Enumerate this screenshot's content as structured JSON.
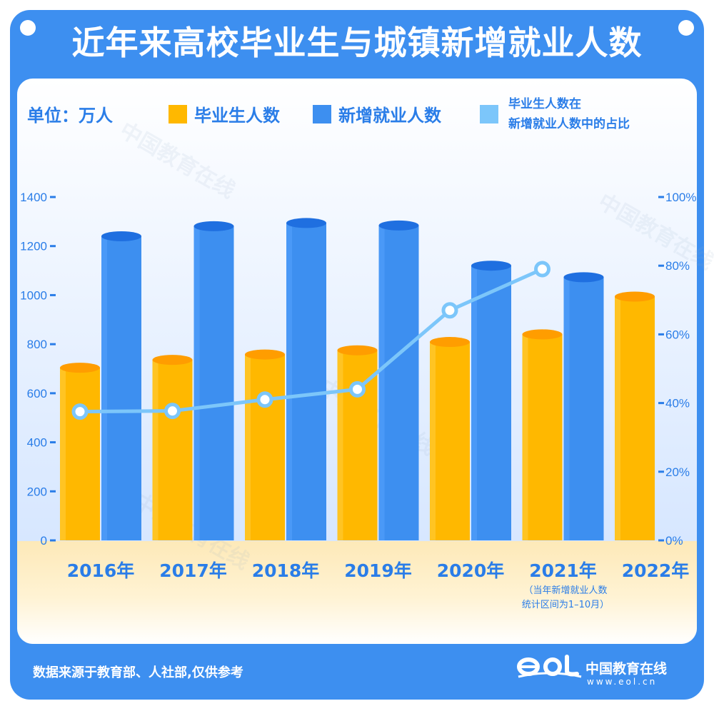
{
  "title": "近年来高校毕业生与城镇新增就业人数",
  "legend": {
    "unit": "单位：万人",
    "graduates": "毕业生人数",
    "new_jobs": "新增就业人数",
    "ratio_line1": "毕业生人数在",
    "ratio_line2": "新增就业人数中的占比"
  },
  "note": {
    "line1": "（当年新增就业人数",
    "line2": "统计区间为1–10月）"
  },
  "footer": {
    "source": "数据来源于教育部、人社部,仅供参考",
    "brand": "中国教育在线",
    "brand_url": "www.eol.cn"
  },
  "colors": {
    "graduates": "#ffb800",
    "new_jobs": "#3d8ff0",
    "ratio": "#7cc6fa",
    "axis_text": "#2a7de8"
  },
  "chart_data": {
    "type": "bar",
    "categories": [
      "2016年",
      "2017年",
      "2018年",
      "2019年",
      "2020年",
      "2021年",
      "2022年"
    ],
    "series": [
      {
        "name": "毕业生人数",
        "values": [
          704,
          736,
          758,
          775,
          809,
          840,
          994
        ]
      },
      {
        "name": "新增就业人数",
        "values": [
          1240,
          1281,
          1294,
          1284,
          1120,
          1073,
          null
        ]
      }
    ],
    "line_series": {
      "name": "毕业生人数在新增就业人数中的占比",
      "values": [
        37.5,
        37.7,
        41.0,
        44.0,
        67.0,
        79.0,
        null
      ]
    },
    "y_left": {
      "ticks": [
        "0",
        "200",
        "400",
        "600",
        "800",
        "1000",
        "1200",
        "1400"
      ],
      "ylim": [
        0,
        1400
      ]
    },
    "y_right": {
      "ticks": [
        "0%",
        "20%",
        "40%",
        "60%",
        "80%",
        "100%"
      ],
      "ylim": [
        0,
        100
      ]
    }
  }
}
